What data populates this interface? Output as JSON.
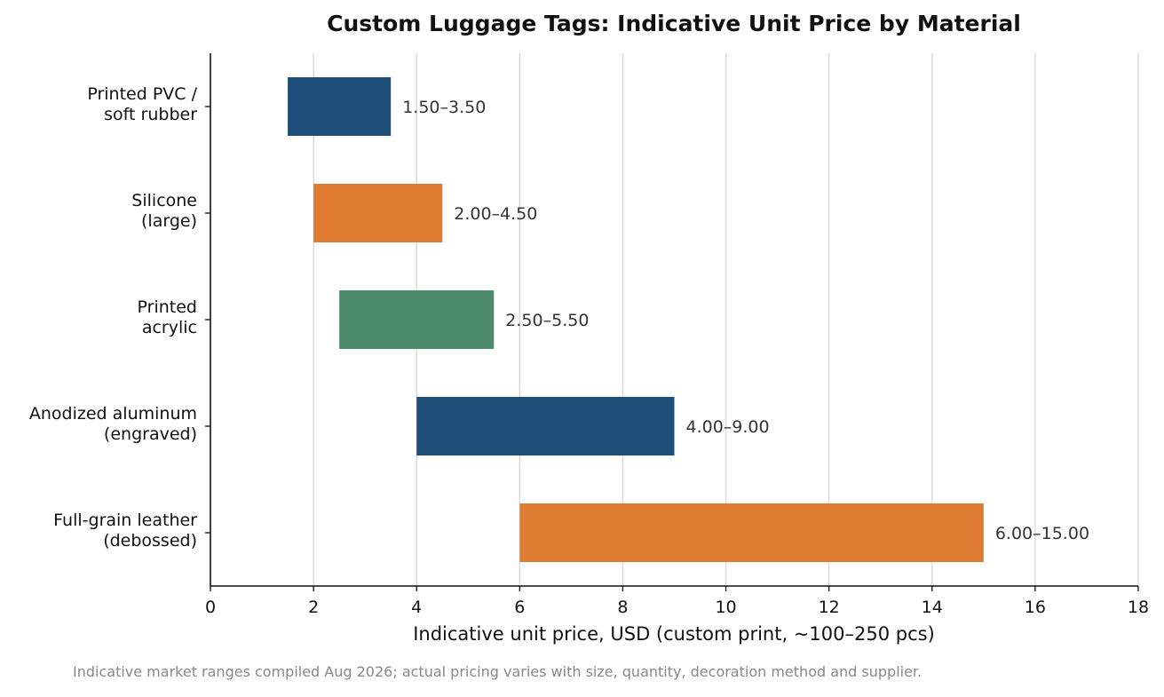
{
  "chart_data": {
    "type": "bar",
    "orientation": "horizontal",
    "title": "Custom Luggage Tags: Indicative Unit Price by Material",
    "xlabel": "Indicative unit price, USD (custom print, ~100–250 pcs)",
    "ylabel": "",
    "xlim": [
      0,
      18
    ],
    "xticks": [
      "0",
      "2",
      "4",
      "6",
      "8",
      "10",
      "12",
      "14",
      "16",
      "18"
    ],
    "grid": "vertical",
    "categories": [
      [
        "Printed PVC /",
        "soft rubber"
      ],
      [
        "Silicone",
        "(large)"
      ],
      [
        "Printed",
        "acrylic"
      ],
      [
        "Anodized aluminum",
        "(engraved)"
      ],
      [
        "Full-grain leather",
        "(debossed)"
      ]
    ],
    "ranges": [
      {
        "low": 1.5,
        "high": 3.5,
        "label": "1.50–3.50",
        "color": "#1f4e79"
      },
      {
        "low": 2.0,
        "high": 4.5,
        "label": "2.00–4.50",
        "color": "#e07b33"
      },
      {
        "low": 2.5,
        "high": 5.5,
        "label": "2.50–5.50",
        "color": "#4d8b6d"
      },
      {
        "low": 4.0,
        "high": 9.0,
        "label": "4.00–9.00",
        "color": "#1f4e79"
      },
      {
        "low": 6.0,
        "high": 15.0,
        "label": "6.00–15.00",
        "color": "#e07b33"
      }
    ],
    "footnote": "Indicative market ranges compiled Aug 2026; actual pricing varies with size, quantity, decoration method and supplier."
  }
}
